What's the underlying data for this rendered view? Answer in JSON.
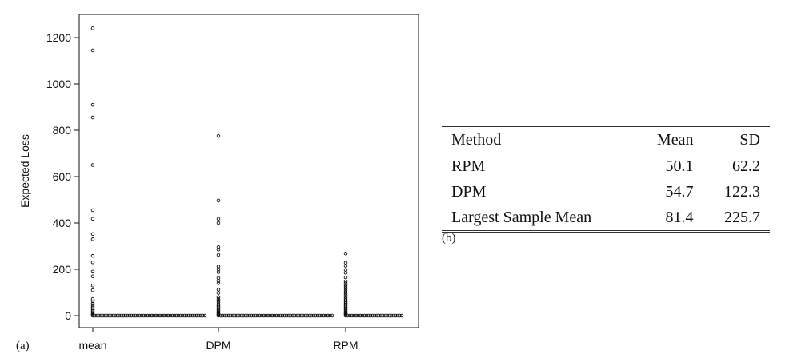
{
  "chart_data": [
    {
      "type": "scatter",
      "panel_label": "(a)",
      "ylabel": "Expected Loss",
      "xlabel": "",
      "categories": [
        "mean",
        "DPM",
        "RPM"
      ],
      "ylim": [
        0,
        1260
      ],
      "y_ticks": [
        0,
        200,
        400,
        600,
        800,
        1000,
        1200
      ],
      "legend": "none",
      "grid": false,
      "series": [
        {
          "category": "mean",
          "outliers": [
            1240,
            1145,
            910,
            855,
            650,
            455,
            418,
            352,
            330,
            258,
            230,
            190,
            170,
            130,
            110,
            72,
            62,
            52,
            45,
            38,
            32,
            26,
            20,
            15,
            10,
            6,
            3
          ],
          "baseline_points": 56,
          "baseline_value": 0
        },
        {
          "category": "DPM",
          "outliers": [
            775,
            497,
            418,
            400,
            296,
            285,
            262,
            212,
            200,
            188,
            162,
            150,
            140,
            112,
            98,
            80,
            72,
            65,
            58,
            50,
            44,
            38,
            32,
            26,
            21,
            16,
            12,
            8,
            5,
            3
          ],
          "baseline_points": 56,
          "baseline_value": 0
        },
        {
          "category": "RPM",
          "outliers": [
            268,
            228,
            215,
            198,
            185,
            165,
            148,
            140,
            132,
            125,
            118,
            110,
            102,
            95,
            88,
            80,
            73,
            66,
            60,
            54,
            48,
            42,
            36,
            30,
            25,
            20,
            15,
            11,
            8,
            5,
            3
          ],
          "baseline_points": 28,
          "baseline_value": 0
        }
      ]
    },
    {
      "type": "table",
      "caption": "(b)",
      "columns": [
        "Method",
        "Mean",
        "SD"
      ],
      "rows": [
        [
          "RPM",
          "50.1",
          "62.2"
        ],
        [
          "DPM",
          "54.7",
          "122.3"
        ],
        [
          "Largest Sample Mean",
          "81.4",
          "225.7"
        ]
      ]
    }
  ]
}
